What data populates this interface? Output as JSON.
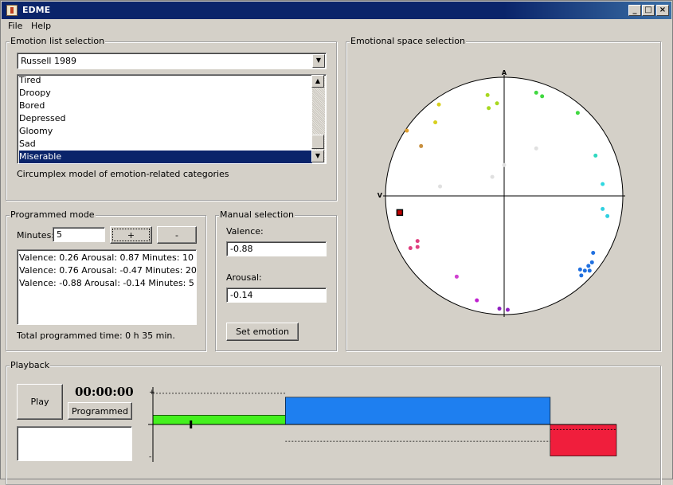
{
  "window": {
    "title": "EDME",
    "minimize": "_",
    "maximize": "□",
    "close": "×"
  },
  "menu": [
    "File",
    "Help"
  ],
  "emotion_list": {
    "group_title": "Emotion list selection",
    "model_selected": "Russell 1989",
    "items": [
      "Tired",
      "Droopy",
      "Bored",
      "Depressed",
      "Gloomy",
      "Sad",
      "Miserable"
    ],
    "selected_index": 6,
    "description": "Circumplex model of emotion-related categories"
  },
  "programmed_mode": {
    "group_title": "Programmed mode",
    "minutes_label": "Minutes:",
    "minutes_value": "5",
    "add_label": "+",
    "remove_label": "-",
    "entries": [
      "Valence: 0.26 Arousal: 0.87 Minutes: 10",
      "Valence: 0.76 Arousal: -0.47 Minutes: 20",
      "Valence: -0.88 Arousal: -0.14 Minutes: 5"
    ],
    "total_time": "Total programmed time: 0 h 35 min."
  },
  "manual_selection": {
    "group_title": "Manual selection",
    "valence_label": "Valence:",
    "valence_value": "-0.88",
    "arousal_label": "Arousal:",
    "arousal_value": "-0.14",
    "set_label": "Set emotion"
  },
  "emotional_space": {
    "group_title": "Emotional space selection",
    "arousal_axis_label": "A",
    "valence_axis_label": "V",
    "points": [
      {
        "v": -0.55,
        "a": 0.77,
        "color": "#d8d020"
      },
      {
        "v": -0.58,
        "a": 0.62,
        "color": "#d8d020"
      },
      {
        "v": -0.14,
        "a": 0.85,
        "color": "#a8d820"
      },
      {
        "v": -0.06,
        "a": 0.78,
        "color": "#a8d820"
      },
      {
        "v": -0.13,
        "a": 0.74,
        "color": "#a8d820"
      },
      {
        "v": 0.27,
        "a": 0.87,
        "color": "#40d840"
      },
      {
        "v": 0.32,
        "a": 0.84,
        "color": "#40d840"
      },
      {
        "v": 0.62,
        "a": 0.7,
        "color": "#40d840"
      },
      {
        "v": -0.82,
        "a": 0.55,
        "color": "#e0a030"
      },
      {
        "v": -0.7,
        "a": 0.42,
        "color": "#c89040"
      },
      {
        "v": 0.27,
        "a": 0.4,
        "color": "#e0e0e0"
      },
      {
        "v": 0.0,
        "a": 0.26,
        "color": "#e0e0e0"
      },
      {
        "v": -0.1,
        "a": 0.16,
        "color": "#e0e0e0"
      },
      {
        "v": -0.54,
        "a": 0.08,
        "color": "#e0e0e0"
      },
      {
        "v": 0.77,
        "a": 0.34,
        "color": "#30d8c0"
      },
      {
        "v": 0.83,
        "a": 0.1,
        "color": "#30d8e0"
      },
      {
        "v": 0.83,
        "a": -0.11,
        "color": "#30d0e0"
      },
      {
        "v": 0.87,
        "a": -0.17,
        "color": "#30d0e0"
      },
      {
        "v": 0.75,
        "a": -0.48,
        "color": "#2070e0"
      },
      {
        "v": 0.74,
        "a": -0.56,
        "color": "#2070e0"
      },
      {
        "v": 0.71,
        "a": -0.59,
        "color": "#2070e0"
      },
      {
        "v": 0.68,
        "a": -0.63,
        "color": "#2070e0"
      },
      {
        "v": 0.64,
        "a": -0.62,
        "color": "#2070e0"
      },
      {
        "v": 0.65,
        "a": -0.67,
        "color": "#2070e0"
      },
      {
        "v": 0.72,
        "a": -0.63,
        "color": "#2070e0"
      },
      {
        "v": -0.73,
        "a": -0.38,
        "color": "#e04080"
      },
      {
        "v": -0.73,
        "a": -0.43,
        "color": "#e04080"
      },
      {
        "v": -0.79,
        "a": -0.44,
        "color": "#e04080"
      },
      {
        "v": -0.4,
        "a": -0.68,
        "color": "#d040d0"
      },
      {
        "v": -0.23,
        "a": -0.88,
        "color": "#c020d0"
      },
      {
        "v": -0.04,
        "a": -0.95,
        "color": "#9020c0"
      },
      {
        "v": 0.03,
        "a": -0.96,
        "color": "#9020c0"
      }
    ],
    "selected_point": {
      "v": -0.88,
      "a": -0.14,
      "color": "#c00000"
    }
  },
  "playback": {
    "group_title": "Playback",
    "play_label": "Play",
    "time": "00:00:00",
    "mode_label": "Programmed",
    "axis_plus": "+",
    "axis_minus": "-",
    "segments": [
      {
        "minutes": 10,
        "valence": 0.26,
        "arousal": 0.87,
        "color": "#44f01e"
      },
      {
        "minutes": 20,
        "valence": 0.76,
        "arousal": -0.47,
        "color": "#1e7ff0"
      },
      {
        "minutes": 5,
        "valence": -0.88,
        "arousal": -0.14,
        "color": "#f01e3c"
      }
    ],
    "cursor_fraction": 0.082
  }
}
